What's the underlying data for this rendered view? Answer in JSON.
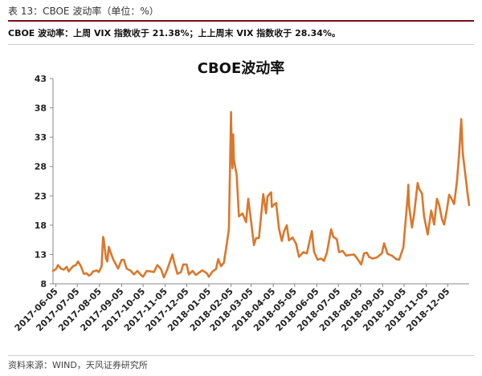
{
  "caption": "表 13：CBOE 波动率（单位：%）",
  "summary": "CBOE 波动率：上周 VIX 指数收于 21.38%；上上周末 VIX 指数收于 28.34%。",
  "source": "资料来源：WIND，天风证券研究所",
  "line_color": "#d9782d",
  "chart_data": {
    "type": "line",
    "title": "CBOE波动率",
    "xlabel": "",
    "ylabel": "",
    "ylim": [
      8,
      43
    ],
    "yticks": [
      8,
      13,
      18,
      23,
      28,
      33,
      38,
      43
    ],
    "xticks": [
      "2017-06-05",
      "2017-07-05",
      "2017-08-05",
      "2017-09-05",
      "2017-10-05",
      "2017-11-05",
      "2017-12-05",
      "2018-01-05",
      "2018-02-05",
      "2018-03-05",
      "2018-04-05",
      "2018-05-05",
      "2018-06-05",
      "2018-07-05",
      "2018-08-05",
      "2018-09-05",
      "2018-10-05",
      "2018-11-05",
      "2018-12-05"
    ],
    "grid": false,
    "legend": "none",
    "series": [
      {
        "points": [
          [
            "2017-06-01",
            10.2
          ],
          [
            "2017-06-05",
            10.5
          ],
          [
            "2017-06-08",
            11.2
          ],
          [
            "2017-06-12",
            10.6
          ],
          [
            "2017-06-16",
            10.4
          ],
          [
            "2017-06-20",
            10.9
          ],
          [
            "2017-06-23",
            10.1
          ],
          [
            "2017-06-26",
            10.6
          ],
          [
            "2017-06-29",
            11.0
          ],
          [
            "2017-07-03",
            11.2
          ],
          [
            "2017-07-06",
            11.8
          ],
          [
            "2017-07-10",
            11.0
          ],
          [
            "2017-07-14",
            9.7
          ],
          [
            "2017-07-18",
            9.8
          ],
          [
            "2017-07-21",
            9.4
          ],
          [
            "2017-07-24",
            9.6
          ],
          [
            "2017-07-27",
            10.1
          ],
          [
            "2017-08-01",
            10.3
          ],
          [
            "2017-08-04",
            10.0
          ],
          [
            "2017-08-08",
            11.0
          ],
          [
            "2017-08-10",
            16.0
          ],
          [
            "2017-08-11",
            15.5
          ],
          [
            "2017-08-14",
            12.3
          ],
          [
            "2017-08-16",
            11.8
          ],
          [
            "2017-08-18",
            14.3
          ],
          [
            "2017-08-21",
            13.2
          ],
          [
            "2017-08-24",
            12.2
          ],
          [
            "2017-08-28",
            11.3
          ],
          [
            "2017-08-31",
            10.6
          ],
          [
            "2017-09-05",
            12.1
          ],
          [
            "2017-09-08",
            12.1
          ],
          [
            "2017-09-12",
            10.6
          ],
          [
            "2017-09-18",
            10.2
          ],
          [
            "2017-09-22",
            9.6
          ],
          [
            "2017-09-27",
            10.2
          ],
          [
            "2017-10-02",
            9.5
          ],
          [
            "2017-10-05",
            9.2
          ],
          [
            "2017-10-10",
            10.2
          ],
          [
            "2017-10-16",
            10.1
          ],
          [
            "2017-10-20",
            10.0
          ],
          [
            "2017-10-25",
            11.2
          ],
          [
            "2017-10-30",
            10.5
          ],
          [
            "2017-11-03",
            9.1
          ],
          [
            "2017-11-08",
            10.5
          ],
          [
            "2017-11-15",
            13.0
          ],
          [
            "2017-11-18",
            11.4
          ],
          [
            "2017-11-22",
            9.7
          ],
          [
            "2017-11-27",
            10.0
          ],
          [
            "2017-11-30",
            11.3
          ],
          [
            "2017-12-05",
            11.3
          ],
          [
            "2017-12-08",
            9.6
          ],
          [
            "2017-12-13",
            10.2
          ],
          [
            "2017-12-18",
            9.5
          ],
          [
            "2017-12-22",
            9.9
          ],
          [
            "2017-12-27",
            10.3
          ],
          [
            "2018-01-02",
            9.8
          ],
          [
            "2018-01-05",
            9.2
          ],
          [
            "2018-01-10",
            10.1
          ],
          [
            "2018-01-15",
            10.5
          ],
          [
            "2018-01-18",
            12.2
          ],
          [
            "2018-01-22",
            11.0
          ],
          [
            "2018-01-26",
            11.6
          ],
          [
            "2018-01-30",
            14.8
          ],
          [
            "2018-02-02",
            17.3
          ],
          [
            "2018-02-05",
            37.3
          ],
          [
            "2018-02-06",
            29.9
          ],
          [
            "2018-02-07",
            27.7
          ],
          [
            "2018-02-08",
            33.5
          ],
          [
            "2018-02-09",
            29.1
          ],
          [
            "2018-02-13",
            26.5
          ],
          [
            "2018-02-16",
            19.5
          ],
          [
            "2018-02-21",
            20.0
          ],
          [
            "2018-02-26",
            18.5
          ],
          [
            "2018-03-01",
            22.5
          ],
          [
            "2018-03-05",
            18.7
          ],
          [
            "2018-03-09",
            14.6
          ],
          [
            "2018-03-12",
            15.8
          ],
          [
            "2018-03-16",
            15.8
          ],
          [
            "2018-03-22",
            23.3
          ],
          [
            "2018-03-26",
            20.0
          ],
          [
            "2018-03-28",
            22.9
          ],
          [
            "2018-04-02",
            23.6
          ],
          [
            "2018-04-03",
            21.1
          ],
          [
            "2018-04-06",
            21.5
          ],
          [
            "2018-04-09",
            21.8
          ],
          [
            "2018-04-13",
            17.4
          ],
          [
            "2018-04-17",
            15.3
          ],
          [
            "2018-04-20",
            16.9
          ],
          [
            "2018-04-24",
            18.0
          ],
          [
            "2018-04-27",
            15.4
          ],
          [
            "2018-05-02",
            15.9
          ],
          [
            "2018-05-07",
            14.8
          ],
          [
            "2018-05-11",
            12.6
          ],
          [
            "2018-05-17",
            13.4
          ],
          [
            "2018-05-22",
            13.2
          ],
          [
            "2018-05-29",
            17.0
          ],
          [
            "2018-06-01",
            13.5
          ],
          [
            "2018-06-06",
            12.1
          ],
          [
            "2018-06-11",
            12.3
          ],
          [
            "2018-06-15",
            11.9
          ],
          [
            "2018-06-19",
            13.3
          ],
          [
            "2018-06-25",
            17.3
          ],
          [
            "2018-06-28",
            16.0
          ],
          [
            "2018-07-03",
            15.6
          ],
          [
            "2018-07-06",
            13.4
          ],
          [
            "2018-07-11",
            13.6
          ],
          [
            "2018-07-16",
            12.8
          ],
          [
            "2018-07-20",
            12.9
          ],
          [
            "2018-07-27",
            13.0
          ],
          [
            "2018-08-01",
            12.2
          ],
          [
            "2018-08-06",
            11.3
          ],
          [
            "2018-08-10",
            13.2
          ],
          [
            "2018-08-14",
            13.3
          ],
          [
            "2018-08-17",
            12.6
          ],
          [
            "2018-08-22",
            12.3
          ],
          [
            "2018-08-28",
            12.5
          ],
          [
            "2018-09-04",
            13.2
          ],
          [
            "2018-09-07",
            14.9
          ],
          [
            "2018-09-12",
            13.1
          ],
          [
            "2018-09-18",
            12.8
          ],
          [
            "2018-09-24",
            12.2
          ],
          [
            "2018-09-28",
            12.1
          ],
          [
            "2018-10-04",
            14.2
          ],
          [
            "2018-10-10",
            22.9
          ],
          [
            "2018-10-11",
            24.9
          ],
          [
            "2018-10-12",
            21.3
          ],
          [
            "2018-10-16",
            17.6
          ],
          [
            "2018-10-19",
            19.9
          ],
          [
            "2018-10-24",
            25.2
          ],
          [
            "2018-10-26",
            24.2
          ],
          [
            "2018-10-30",
            23.4
          ],
          [
            "2018-11-02",
            19.5
          ],
          [
            "2018-11-07",
            16.4
          ],
          [
            "2018-11-12",
            20.5
          ],
          [
            "2018-11-16",
            18.1
          ],
          [
            "2018-11-20",
            22.5
          ],
          [
            "2018-11-23",
            21.5
          ],
          [
            "2018-11-27",
            19.0
          ],
          [
            "2018-11-30",
            18.1
          ],
          [
            "2018-12-04",
            20.7
          ],
          [
            "2018-12-07",
            23.2
          ],
          [
            "2018-12-10",
            22.6
          ],
          [
            "2018-12-14",
            21.6
          ],
          [
            "2018-12-18",
            25.6
          ],
          [
            "2018-12-21",
            30.1
          ],
          [
            "2018-12-24",
            36.1
          ],
          [
            "2018-12-26",
            30.4
          ],
          [
            "2018-12-28",
            28.3
          ],
          [
            "2019-01-02",
            23.2
          ],
          [
            "2019-01-04",
            21.4
          ]
        ]
      }
    ]
  }
}
